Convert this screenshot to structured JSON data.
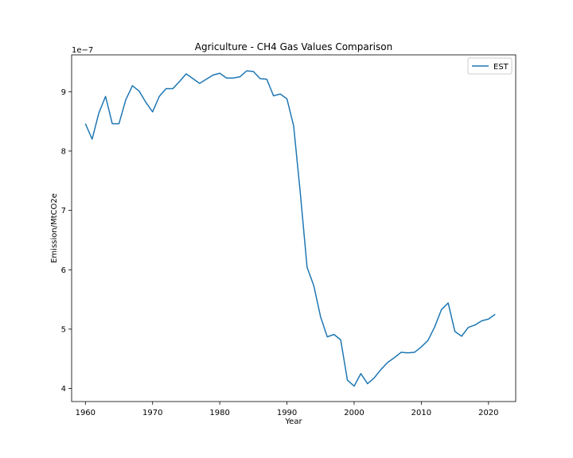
{
  "chart_data": {
    "type": "line",
    "title": "Agriculture - CH4 Gas Values Comparison",
    "xlabel": "Year",
    "ylabel": "Emission/MtCO2e",
    "y_offset_label": "1e−7",
    "xlim": [
      1957.95,
      2024.05
    ],
    "ylim": [
      3.78,
      9.62
    ],
    "xticks": [
      1960,
      1970,
      1980,
      1990,
      2000,
      2010,
      2020
    ],
    "yticks": [
      4,
      5,
      6,
      7,
      8,
      9
    ],
    "grid": false,
    "legend": {
      "position": "top-right",
      "entries": [
        "EST"
      ]
    },
    "series": [
      {
        "name": "EST",
        "color": "#1f77b4",
        "x": [
          1960,
          1961,
          1962,
          1963,
          1964,
          1965,
          1966,
          1967,
          1968,
          1969,
          1970,
          1971,
          1972,
          1973,
          1974,
          1975,
          1976,
          1977,
          1978,
          1979,
          1980,
          1981,
          1982,
          1983,
          1984,
          1985,
          1986,
          1987,
          1988,
          1989,
          1990,
          1991,
          1992,
          1993,
          1994,
          1995,
          1996,
          1997,
          1998,
          1999,
          2000,
          2001,
          2002,
          2003,
          2004,
          2005,
          2006,
          2007,
          2008,
          2009,
          2010,
          2011,
          2012,
          2013,
          2014,
          2015,
          2016,
          2017,
          2018,
          2019,
          2020,
          2021
        ],
        "values": [
          8.46,
          8.2,
          8.64,
          8.92,
          8.46,
          8.46,
          8.86,
          9.1,
          9.01,
          8.82,
          8.66,
          8.92,
          9.05,
          9.05,
          9.17,
          9.3,
          9.22,
          9.14,
          9.21,
          9.28,
          9.31,
          9.23,
          9.23,
          9.25,
          9.35,
          9.34,
          9.22,
          9.21,
          8.93,
          8.96,
          8.88,
          8.42,
          7.28,
          6.04,
          5.73,
          5.21,
          4.87,
          4.91,
          4.82,
          4.14,
          4.04,
          4.25,
          4.08,
          4.18,
          4.32,
          4.44,
          4.52,
          4.61,
          4.6,
          4.61,
          4.7,
          4.81,
          5.04,
          5.33,
          5.44,
          4.96,
          4.88,
          5.03,
          5.07,
          5.14,
          5.17,
          5.25
        ]
      }
    ]
  }
}
